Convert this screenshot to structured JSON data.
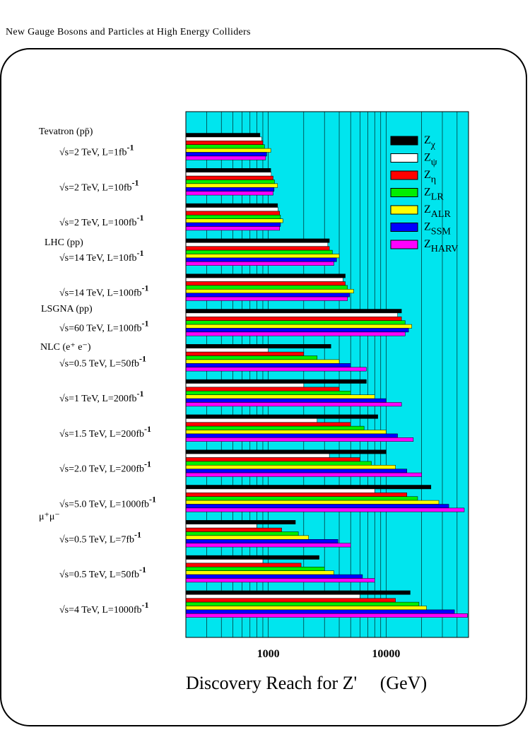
{
  "header": {
    "title": "New Gauge Bosons and Particles at High Energy Colliders"
  },
  "chart_data": {
    "type": "bar",
    "orientation": "horizontal",
    "xscale": "log",
    "xlim": [
      200,
      50000
    ],
    "xlabel": "Discovery Reach for Z'     (GeV)",
    "xticks": [
      1000,
      10000
    ],
    "xtick_labels": [
      "1000",
      "10000"
    ],
    "grid": true,
    "legend_position": "top-right",
    "background_color": "#00e5ee",
    "series": [
      {
        "name": "Z_χ",
        "base": "Z",
        "sub": "χ",
        "color": "#000000"
      },
      {
        "name": "Z_ψ",
        "base": "Z",
        "sub": "ψ",
        "color": "#ffffff"
      },
      {
        "name": "Z_η",
        "base": "Z",
        "sub": "η",
        "color": "#ff0000"
      },
      {
        "name": "Z_LR",
        "base": "Z",
        "sub": "LR",
        "color": "#00ee00"
      },
      {
        "name": "Z_ALR",
        "base": "Z",
        "sub": "ALR",
        "color": "#ffff00"
      },
      {
        "name": "Z_SSM",
        "base": "Z",
        "sub": "SSM",
        "color": "#0000ff"
      },
      {
        "name": "Z_HARV",
        "base": "Z",
        "sub": "HARV",
        "color": "#ff00ff"
      }
    ],
    "groups": [
      {
        "label": "Tevatron (pp̄)",
        "rows": [
          {
            "label_main": "√s=2 TeV, L=1fb",
            "label_sup": "-1",
            "values": [
              850,
              880,
              900,
              930,
              1050,
              970,
              950
            ]
          },
          {
            "label_main": "√s=2 TeV, L=10fb",
            "label_sup": "-1",
            "values": [
              1050,
              1060,
              1100,
              1130,
              1200,
              1120,
              1100
            ]
          },
          {
            "label_main": "√s=2 TeV, L=100fb",
            "label_sup": "-1",
            "values": [
              1200,
              1210,
              1250,
              1270,
              1330,
              1270,
              1250
            ]
          }
        ]
      },
      {
        "label": "LHC (pp)",
        "rows": [
          {
            "label_main": "√s=14 TeV, L=10fb",
            "label_sup": "-1",
            "values": [
              3300,
              3200,
              3300,
              3500,
              4000,
              3800,
              3600
            ]
          },
          {
            "label_main": "√s=14 TeV, L=100fb",
            "label_sup": "-1",
            "values": [
              4500,
              4300,
              4500,
              4700,
              5300,
              4900,
              4700
            ]
          }
        ]
      },
      {
        "label": "LSGNA (pp)",
        "rows": [
          {
            "label_main": "√s=60 TeV, L=100fb",
            "label_sup": "-1",
            "values": [
              13500,
              12500,
              13500,
              14500,
              16500,
              15500,
              14500
            ]
          }
        ]
      },
      {
        "label": "NLC (e⁺ e⁻)",
        "rows": [
          {
            "label_main": "√s=0.5 TeV, L=50fb",
            "label_sup": "-1",
            "values": [
              3400,
              1000,
              2000,
              2600,
              4000,
              5000,
              6800
            ]
          },
          {
            "label_main": "√s=1 TeV, L=200fb",
            "label_sup": "-1",
            "values": [
              6800,
              2000,
              4000,
              5000,
              8000,
              10000,
              13500
            ]
          },
          {
            "label_main": "√s=1.5 TeV, L=200fb",
            "label_sup": "-1",
            "values": [
              8500,
              2600,
              5000,
              6500,
              10000,
              12500,
              17000
            ]
          },
          {
            "label_main": "√s=2.0 TeV, L=200fb",
            "label_sup": "-1",
            "values": [
              10000,
              3300,
              6000,
              7500,
              12000,
              15000,
              20000
            ]
          },
          {
            "label_main": "√s=5.0 TeV, L=1000fb",
            "label_sup": "-1",
            "values": [
              24000,
              8000,
              15000,
              18500,
              28000,
              34000,
              46000
            ]
          }
        ]
      },
      {
        "label": "μ⁺μ⁻",
        "rows": [
          {
            "label_main": "√s=0.5 TeV, L=7fb",
            "label_sup": "-1",
            "values": [
              1700,
              800,
              1300,
              1800,
              2200,
              3900,
              5000
            ]
          },
          {
            "label_main": "√s=0.5 TeV, L=50fb",
            "label_sup": "-1",
            "values": [
              2700,
              900,
              1900,
              3000,
              3600,
              6300,
              8000
            ]
          },
          {
            "label_main": "√s=4 TeV, L=1000fb",
            "label_sup": "-1",
            "values": [
              16000,
              6000,
              12000,
              19000,
              22000,
              38000,
              49000
            ]
          }
        ]
      }
    ]
  }
}
